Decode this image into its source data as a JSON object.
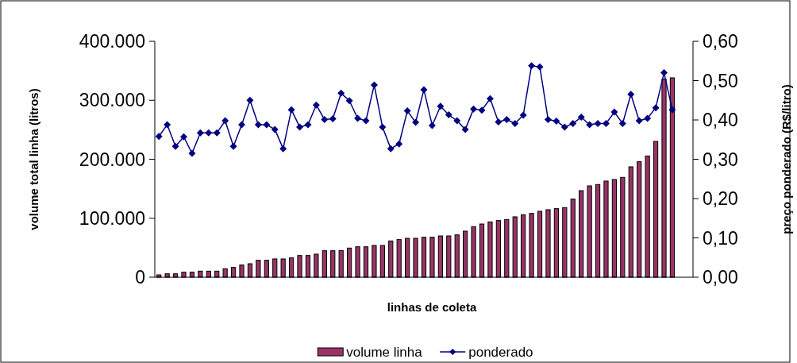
{
  "chart_data": {
    "type": "bar",
    "xlabel": "linhas de coleta",
    "ylabel": "volume total linha (litros)",
    "y2label": "preço ponderado (R$/litro)",
    "categories": [
      null,
      null,
      null,
      null,
      null,
      null,
      null,
      null,
      null,
      null,
      null,
      null,
      null,
      null,
      null,
      null,
      null,
      null,
      null,
      null,
      null,
      null,
      null,
      null,
      null,
      null,
      null,
      null,
      null,
      null,
      null,
      null,
      null,
      null,
      null,
      null,
      null,
      null,
      null,
      null,
      null,
      null,
      null,
      null,
      null,
      null,
      null,
      null,
      null,
      null,
      null,
      null,
      null,
      null,
      null,
      null,
      null,
      null,
      null,
      null,
      null,
      null,
      null,
      null,
      null
    ],
    "series": [
      {
        "name": "volume linha",
        "color": "#993366",
        "values": [
          4000,
          5800,
          5800,
          8500,
          8500,
          10300,
          10300,
          10300,
          14400,
          16600,
          20700,
          22900,
          28700,
          28700,
          31000,
          31000,
          32800,
          36800,
          36800,
          39100,
          44900,
          44900,
          45300,
          49400,
          51600,
          51600,
          53900,
          53900,
          61500,
          63800,
          66000,
          66000,
          67800,
          67800,
          70000,
          70000,
          71800,
          78100,
          85800,
          90200,
          93800,
          96100,
          97900,
          102400,
          106000,
          108200,
          111800,
          114500,
          116300,
          118100,
          132500,
          146800,
          154900,
          157200,
          163000,
          165700,
          169300,
          187200,
          195800,
          205600,
          230300,
          335900,
          338100,
          null,
          null
        ]
      },
      {
        "name": "ponderado",
        "type": "line",
        "axis": "y2",
        "color": "#000080",
        "marker": "diamond",
        "values": [
          0.358,
          0.388,
          0.333,
          0.357,
          0.315,
          0.367,
          0.367,
          0.367,
          0.398,
          0.333,
          0.388,
          0.45,
          0.388,
          0.388,
          0.376,
          0.327,
          0.426,
          0.382,
          0.388,
          0.438,
          0.401,
          0.403,
          0.468,
          0.449,
          0.404,
          0.398,
          0.489,
          0.382,
          0.327,
          0.339,
          0.423,
          0.394,
          0.477,
          0.386,
          0.435,
          0.413,
          0.398,
          0.376,
          0.428,
          0.425,
          0.454,
          0.395,
          0.401,
          0.391,
          0.412,
          0.538,
          0.535,
          0.401,
          0.397,
          0.382,
          0.391,
          0.407,
          0.388,
          0.391,
          0.391,
          0.42,
          0.391,
          0.465,
          0.398,
          0.404,
          0.431,
          0.52,
          0.426,
          null,
          null
        ]
      }
    ],
    "ylim": [
      0,
      400000
    ],
    "yticks": [
      0,
      {
        "value": 100000,
        "label": "100.000"
      },
      {
        "value": 200000,
        "label": "200.000"
      },
      {
        "value": 300000,
        "label": "300.000"
      },
      {
        "value": 400000,
        "label": "400.000"
      }
    ],
    "y2lim": [
      0,
      0.6
    ],
    "y2ticks": [
      {
        "value": 0,
        "label": "0,00"
      },
      {
        "value": 0.1,
        "label": "0,10"
      },
      {
        "value": 0.2,
        "label": "0,20"
      },
      {
        "value": 0.3,
        "label": "0,30"
      },
      {
        "value": 0.4,
        "label": "0,40"
      },
      {
        "value": 0.5,
        "label": "0,50"
      },
      {
        "value": 0.6,
        "label": "0,60"
      }
    ],
    "legend": "bottom",
    "grid": false
  }
}
